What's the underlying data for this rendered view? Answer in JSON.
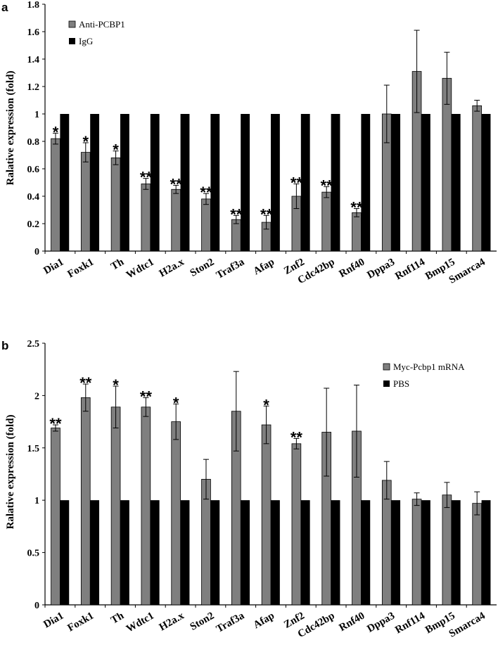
{
  "chart_data": [
    {
      "type": "bar",
      "panel_label": "a",
      "title": "",
      "xlabel": "",
      "ylabel": "Ralative expression (fold)",
      "ylim": [
        0,
        1.8
      ],
      "yticks": [
        "0",
        "0.2",
        "0.4",
        "0.6",
        "0.8",
        "1",
        "1.2",
        "1.4",
        "1.6",
        "1.8"
      ],
      "categories": [
        "Dia1",
        "Foxk1",
        "Th",
        "Wdtc1",
        "H2a.x",
        "Ston2",
        "Traf3a",
        "Afap",
        "Znf2",
        "Cdc42bp",
        "Rnf40",
        "Dppa3",
        "Rnf114",
        "Bmp15",
        "Smarca4"
      ],
      "legend_position": "top-left",
      "series": [
        {
          "name": "Anti-PCBP1",
          "color": "#7f7f7f",
          "values": [
            0.82,
            0.72,
            0.68,
            0.49,
            0.45,
            0.38,
            0.23,
            0.21,
            0.4,
            0.43,
            0.28,
            1.0,
            1.31,
            1.26,
            1.06
          ],
          "errors": [
            0.04,
            0.07,
            0.05,
            0.04,
            0.03,
            0.04,
            0.03,
            0.05,
            0.09,
            0.04,
            0.03,
            0.21,
            0.3,
            0.19,
            0.04
          ],
          "significance": [
            "*",
            "*",
            "*",
            "**",
            "**",
            "**",
            "**",
            "**",
            "**",
            "**",
            "**",
            "",
            "",
            "",
            ""
          ]
        },
        {
          "name": "IgG",
          "color": "#000000",
          "values": [
            1,
            1,
            1,
            1,
            1,
            1,
            1,
            1,
            1,
            1,
            1,
            1,
            1,
            1,
            1
          ]
        }
      ]
    },
    {
      "type": "bar",
      "panel_label": "b",
      "title": "",
      "xlabel": "",
      "ylabel": "Ralative expression (fold)",
      "ylim": [
        0,
        2.5
      ],
      "yticks": [
        "0",
        "0.5",
        "1",
        "1.5",
        "2",
        "2.5"
      ],
      "categories": [
        "Dia1",
        "Foxk1",
        "Th",
        "Wdtc1",
        "H2a.x",
        "Ston2",
        "Traf3a",
        "Afap",
        "Znf2",
        "Cdc42bp",
        "Rnf40",
        "Dppa3",
        "Rnf114",
        "Bmp15",
        "Smarca4"
      ],
      "legend_position": "top-right",
      "series": [
        {
          "name": "Myc-Pcbp1 mRNA",
          "color": "#7f7f7f",
          "values": [
            1.69,
            1.98,
            1.89,
            1.89,
            1.75,
            1.2,
            1.85,
            1.72,
            1.54,
            1.65,
            1.66,
            1.19,
            1.01,
            1.05,
            0.97
          ],
          "errors": [
            0.03,
            0.13,
            0.2,
            0.09,
            0.17,
            0.19,
            0.38,
            0.18,
            0.05,
            0.42,
            0.44,
            0.18,
            0.06,
            0.12,
            0.11
          ],
          "significance": [
            "**",
            "**",
            "*",
            "**",
            "*",
            "",
            "",
            "*",
            "**",
            "",
            "",
            "",
            "",
            "",
            ""
          ]
        },
        {
          "name": "PBS",
          "color": "#000000",
          "values": [
            1,
            1,
            1,
            1,
            1,
            1,
            1,
            1,
            1,
            1,
            1,
            1,
            1,
            1,
            1
          ]
        }
      ]
    }
  ]
}
